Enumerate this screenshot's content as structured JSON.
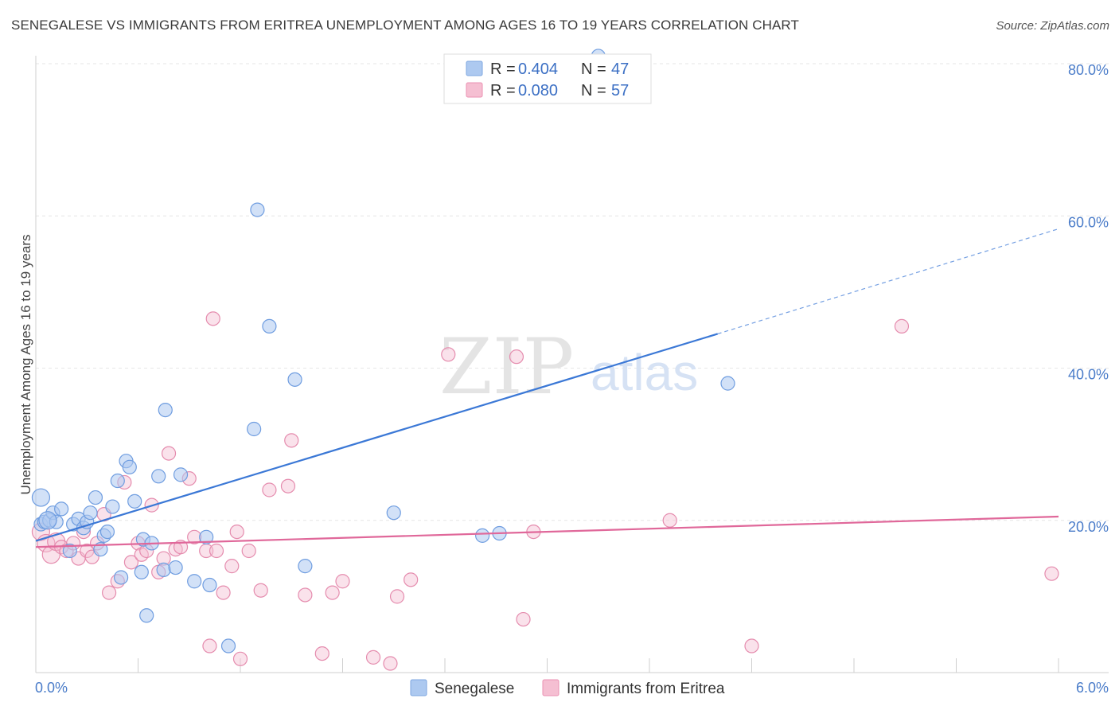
{
  "title": "SENEGALESE VS IMMIGRANTS FROM ERITREA UNEMPLOYMENT AMONG AGES 16 TO 19 YEARS CORRELATION CHART",
  "source": "Source: ZipAtlas.com",
  "watermark": {
    "zip": "ZIP",
    "atlas": "atlas"
  },
  "colors": {
    "blue": "#3b78d6",
    "blue_fill": "#adc9f0",
    "pink": "#e0689a",
    "pink_fill": "#f5bfd2",
    "grid": "#e6e6e6",
    "tick_label": "#4a7cc9"
  },
  "legend": {
    "rows": [
      {
        "r_label": "R = ",
        "r_value": "0.404",
        "n_label": "N = ",
        "n_value": "47"
      },
      {
        "r_label": "R = ",
        "r_value": "0.080",
        "n_label": "N = ",
        "n_value": "57"
      }
    ]
  },
  "chart_data": {
    "type": "scatter",
    "title": "SENEGALESE VS IMMIGRANTS FROM ERITREA UNEMPLOYMENT AMONG AGES 16 TO 19 YEARS CORRELATION CHART",
    "xlabel": "",
    "ylabel": "Unemployment Among Ages 16 to 19 years",
    "xlim": [
      0,
      6.3
    ],
    "ylim": [
      0,
      82
    ],
    "x_tick_labels": [
      "0.0%",
      "6.0%"
    ],
    "y_ticks": [
      20,
      40,
      60,
      80
    ],
    "y_tick_labels": [
      "20.0%",
      "40.0%",
      "60.0%",
      "80.0%"
    ],
    "grid": true,
    "legend_position": "top-center",
    "series": [
      {
        "name": "Senegalese",
        "color": "#3b78d6",
        "trend": {
          "x0": 0.0,
          "y0": 17.3,
          "x1": 4.0,
          "y1": 44.5,
          "dashed_to_x": 6.0,
          "dashed_to_y": 58.3
        },
        "points": [
          [
            0.03,
            19.5
          ],
          [
            0.05,
            19.8
          ],
          [
            0.08,
            20.0
          ],
          [
            0.1,
            21.0
          ],
          [
            0.12,
            19.8
          ],
          [
            0.15,
            21.5
          ],
          [
            0.2,
            16.0
          ],
          [
            0.22,
            19.5
          ],
          [
            0.25,
            20.2
          ],
          [
            0.28,
            19.0
          ],
          [
            0.3,
            19.8
          ],
          [
            0.32,
            21.0
          ],
          [
            0.35,
            23.0
          ],
          [
            0.38,
            16.2
          ],
          [
            0.4,
            18.0
          ],
          [
            0.42,
            18.5
          ],
          [
            0.45,
            21.8
          ],
          [
            0.48,
            25.2
          ],
          [
            0.5,
            12.5
          ],
          [
            0.53,
            27.8
          ],
          [
            0.55,
            27.0
          ],
          [
            0.58,
            22.5
          ],
          [
            0.62,
            13.2
          ],
          [
            0.63,
            17.5
          ],
          [
            0.65,
            7.5
          ],
          [
            0.68,
            17.0
          ],
          [
            0.72,
            25.8
          ],
          [
            0.75,
            13.5
          ],
          [
            0.76,
            34.5
          ],
          [
            0.82,
            13.8
          ],
          [
            0.85,
            26.0
          ],
          [
            0.93,
            12.0
          ],
          [
            1.0,
            17.8
          ],
          [
            1.02,
            11.5
          ],
          [
            1.13,
            3.5
          ],
          [
            1.28,
            32.0
          ],
          [
            1.3,
            60.8
          ],
          [
            1.37,
            45.5
          ],
          [
            1.52,
            38.5
          ],
          [
            1.58,
            14.0
          ],
          [
            2.1,
            21.0
          ],
          [
            2.62,
            18.0
          ],
          [
            2.72,
            18.3
          ],
          [
            3.3,
            81.0
          ],
          [
            4.06,
            38.0
          ],
          [
            0.03,
            23.0
          ],
          [
            0.07,
            20.0
          ]
        ]
      },
      {
        "name": "Immigrants from Eritrea",
        "color": "#e0689a",
        "trend": {
          "x0": 0.0,
          "y0": 16.5,
          "x1": 6.0,
          "y1": 20.5
        },
        "points": [
          [
            0.03,
            18.5
          ],
          [
            0.06,
            17.0
          ],
          [
            0.09,
            15.5
          ],
          [
            0.12,
            17.2
          ],
          [
            0.15,
            16.5
          ],
          [
            0.18,
            16.0
          ],
          [
            0.22,
            17.0
          ],
          [
            0.25,
            15.0
          ],
          [
            0.28,
            18.5
          ],
          [
            0.3,
            16.0
          ],
          [
            0.33,
            15.2
          ],
          [
            0.36,
            17.0
          ],
          [
            0.4,
            20.8
          ],
          [
            0.43,
            10.5
          ],
          [
            0.48,
            12.0
          ],
          [
            0.52,
            25.0
          ],
          [
            0.56,
            14.5
          ],
          [
            0.6,
            17.0
          ],
          [
            0.62,
            15.5
          ],
          [
            0.65,
            16.0
          ],
          [
            0.68,
            22.0
          ],
          [
            0.72,
            13.2
          ],
          [
            0.75,
            15.0
          ],
          [
            0.78,
            28.8
          ],
          [
            0.82,
            16.2
          ],
          [
            0.85,
            16.5
          ],
          [
            0.9,
            25.5
          ],
          [
            0.93,
            17.8
          ],
          [
            1.0,
            16.0
          ],
          [
            1.02,
            3.5
          ],
          [
            1.04,
            46.5
          ],
          [
            1.06,
            16.0
          ],
          [
            1.1,
            10.5
          ],
          [
            1.15,
            14.0
          ],
          [
            1.18,
            18.5
          ],
          [
            1.2,
            1.8
          ],
          [
            1.25,
            16.0
          ],
          [
            1.32,
            10.8
          ],
          [
            1.37,
            24.0
          ],
          [
            1.48,
            24.5
          ],
          [
            1.5,
            30.5
          ],
          [
            1.58,
            10.2
          ],
          [
            1.68,
            2.5
          ],
          [
            1.74,
            10.5
          ],
          [
            1.8,
            12.0
          ],
          [
            1.98,
            2.0
          ],
          [
            2.08,
            1.2
          ],
          [
            2.12,
            10.0
          ],
          [
            2.2,
            12.2
          ],
          [
            2.42,
            41.8
          ],
          [
            2.82,
            41.5
          ],
          [
            2.86,
            7.0
          ],
          [
            2.92,
            18.5
          ],
          [
            3.72,
            20.0
          ],
          [
            4.2,
            3.5
          ],
          [
            5.08,
            45.5
          ],
          [
            5.96,
            13.0
          ]
        ]
      }
    ]
  },
  "bottom_legend": {
    "items": [
      {
        "label": "Senegalese"
      },
      {
        "label": "Immigrants from Eritrea"
      }
    ]
  }
}
